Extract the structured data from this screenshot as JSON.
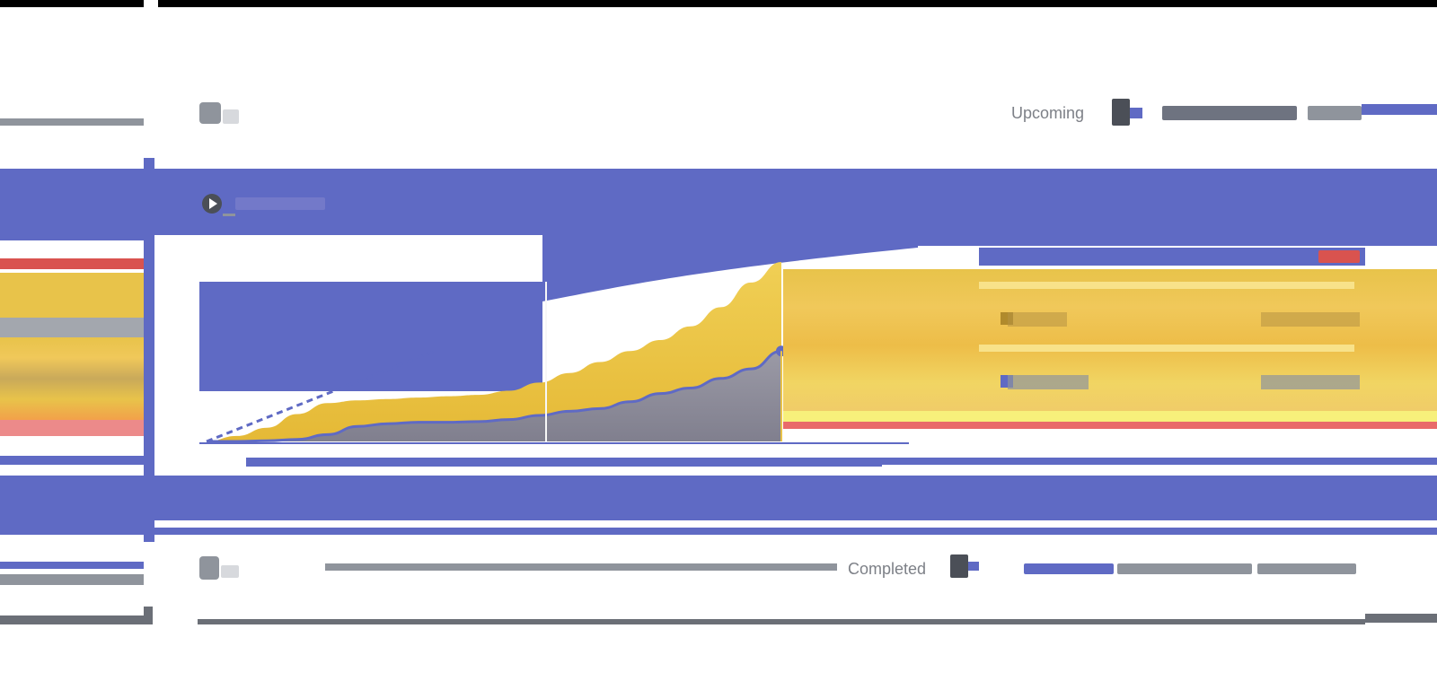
{
  "rows": {
    "top": {
      "status": "Upcoming",
      "icon": "cube-icon",
      "avatar": "avatar-icon"
    },
    "bottom": {
      "status": "Completed",
      "icon": "cube-icon",
      "avatar": "avatar-icon"
    }
  },
  "card": {
    "title_icon": "play-icon"
  },
  "chart_data": {
    "type": "area",
    "series": [
      {
        "values": [
          0,
          8,
          20,
          40,
          56,
          60,
          62,
          64,
          66,
          68,
          74,
          86,
          100,
          116,
          132,
          148,
          168,
          196,
          232,
          262
        ],
        "color": "#e8c34a"
      },
      {
        "values": [
          0,
          0,
          1,
          3,
          10,
          22,
          26,
          28,
          28,
          29,
          32,
          38,
          44,
          48,
          58,
          70,
          78,
          92,
          106,
          132
        ],
        "color": "#5f6ac4"
      }
    ],
    "grid": false,
    "legend": "right"
  },
  "legend": [
    {
      "label": "",
      "value": "",
      "delta": ""
    },
    {
      "label": "",
      "value": "",
      "delta": ""
    },
    {
      "label": "",
      "value": "",
      "delta": ""
    }
  ],
  "colors": {
    "accent": "#5f6ac4",
    "yellow": "#e8c34a",
    "red": "#d9534f",
    "text": "#7d8087"
  }
}
